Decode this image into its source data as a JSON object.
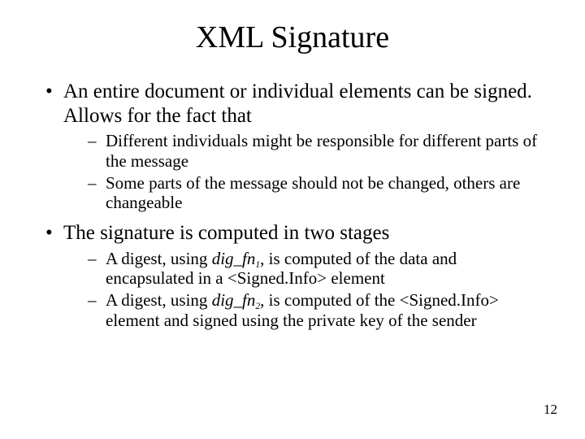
{
  "slide": {
    "title": "XML Signature",
    "page_number": "12",
    "bullets": [
      {
        "text": "An entire document or individual elements can be signed.  Allows for the fact that",
        "sub": [
          {
            "text": "Different individuals might be responsible for different parts of the message"
          },
          {
            "text": "Some parts of the message should not be changed, others are changeable"
          }
        ]
      },
      {
        "text": "The signature is computed in two stages",
        "sub": [
          {
            "prefix": "A digest, using ",
            "fn": "dig_fn",
            "subscript": "1",
            "suffix": ", is computed of the data and encapsulated in a <Signed.Info> element"
          },
          {
            "prefix": "A digest, using ",
            "fn": "dig_fn",
            "subscript": "2",
            "suffix": ", is computed of the <Signed.Info> element and signed using the private key of the sender"
          }
        ]
      }
    ]
  }
}
